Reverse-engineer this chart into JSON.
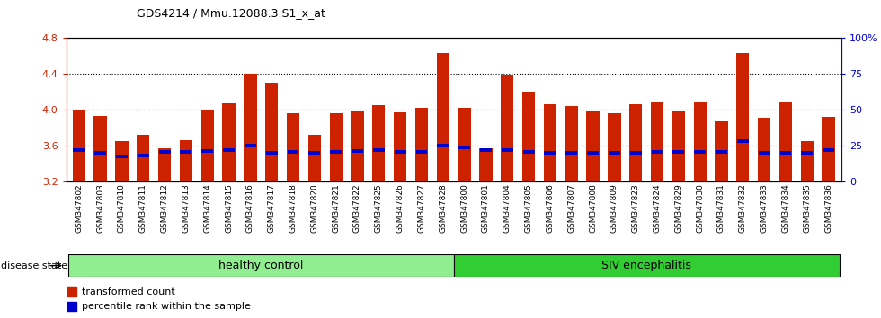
{
  "title": "GDS4214 / Mmu.12088.3.S1_x_at",
  "samples": [
    "GSM347802",
    "GSM347803",
    "GSM347810",
    "GSM347811",
    "GSM347812",
    "GSM347813",
    "GSM347814",
    "GSM347815",
    "GSM347816",
    "GSM347817",
    "GSM347818",
    "GSM347820",
    "GSM347821",
    "GSM347822",
    "GSM347825",
    "GSM347826",
    "GSM347827",
    "GSM347828",
    "GSM347800",
    "GSM347801",
    "GSM347804",
    "GSM347805",
    "GSM347806",
    "GSM347807",
    "GSM347808",
    "GSM347809",
    "GSM347823",
    "GSM347824",
    "GSM347829",
    "GSM347830",
    "GSM347831",
    "GSM347832",
    "GSM347833",
    "GSM347834",
    "GSM347835",
    "GSM347836"
  ],
  "bar_values": [
    3.99,
    3.93,
    3.65,
    3.72,
    3.57,
    3.66,
    4.0,
    4.07,
    4.4,
    4.3,
    3.96,
    3.72,
    3.96,
    3.98,
    4.05,
    3.97,
    4.02,
    4.63,
    4.02,
    3.57,
    4.38,
    4.2,
    4.06,
    4.04,
    3.98,
    3.96,
    4.06,
    4.08,
    3.98,
    4.09,
    3.87,
    4.63,
    3.91,
    4.08,
    3.65,
    3.92
  ],
  "percentile_values": [
    3.55,
    3.52,
    3.48,
    3.49,
    3.53,
    3.53,
    3.54,
    3.55,
    3.6,
    3.52,
    3.53,
    3.52,
    3.53,
    3.54,
    3.55,
    3.53,
    3.53,
    3.6,
    3.58,
    3.55,
    3.55,
    3.53,
    3.52,
    3.52,
    3.52,
    3.52,
    3.52,
    3.53,
    3.53,
    3.53,
    3.53,
    3.65,
    3.52,
    3.52,
    3.52,
    3.55
  ],
  "groups": [
    {
      "label": "healthy control",
      "start": 0,
      "end": 17,
      "color": "#90EE90"
    },
    {
      "label": "SIV encephalitis",
      "start": 18,
      "end": 35,
      "color": "#32CD32"
    }
  ],
  "bar_color": "#CC2200",
  "percentile_color": "#0000CC",
  "y_min": 3.2,
  "y_max": 4.8,
  "y_ticks_left": [
    3.2,
    3.6,
    4.0,
    4.4,
    4.8
  ],
  "y_ticks_right": [
    0,
    25,
    50,
    75,
    100
  ],
  "y_right_labels": [
    "0",
    "25",
    "50",
    "75",
    "100%"
  ],
  "grid_lines": [
    3.6,
    4.0,
    4.4
  ],
  "left_axis_color": "#CC2200",
  "right_axis_color": "#0000CC",
  "disease_state_label": "disease state",
  "legend_items": [
    {
      "label": "transformed count",
      "color": "#CC2200"
    },
    {
      "label": "percentile rank within the sample",
      "color": "#0000CC"
    }
  ],
  "n_healthy": 18,
  "n_siv": 18
}
